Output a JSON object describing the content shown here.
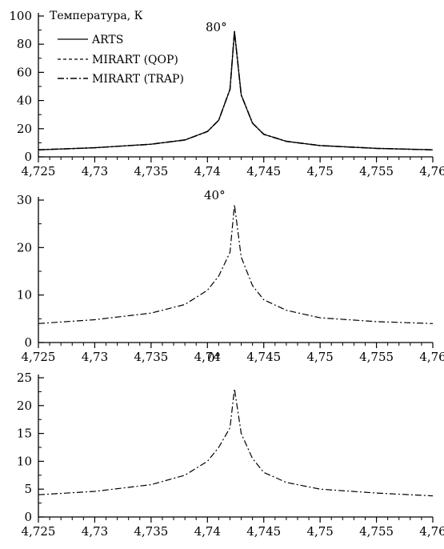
{
  "chart_data": [
    {
      "type": "line",
      "title": "",
      "ylabel": "Температура, К",
      "annotation": "80°",
      "xlim": [
        4.725,
        4.76
      ],
      "ylim": [
        0,
        100
      ],
      "xticks": [
        "4,725",
        "4,73",
        "4,735",
        "4,74",
        "4,745",
        "4,75",
        "4,755",
        "4,76"
      ],
      "yticks": [
        "0",
        "20",
        "40",
        "60",
        "80",
        "100"
      ],
      "legend": {
        "placement": "top-left",
        "entries": [
          {
            "label": "ARTS",
            "style": "solid"
          },
          {
            "label": "MIRART (QOP)",
            "style": "dashed"
          },
          {
            "label": "MIRART (TRAP)",
            "style": "dashdot"
          }
        ]
      },
      "series": [
        {
          "name": "ARTS",
          "x": [
            4.725,
            4.73,
            4.735,
            4.738,
            4.74,
            4.741,
            4.742,
            4.7424,
            4.743,
            4.744,
            4.745,
            4.747,
            4.75,
            4.755,
            4.76
          ],
          "y": [
            5,
            6.5,
            9,
            12,
            18,
            26,
            48,
            89,
            44,
            24,
            16,
            11,
            8,
            6,
            5
          ]
        },
        {
          "name": "MIRART (QOP)",
          "x": [
            4.725,
            4.73,
            4.735,
            4.738,
            4.74,
            4.741,
            4.742,
            4.7424,
            4.743,
            4.744,
            4.745,
            4.747,
            4.75,
            4.755,
            4.76
          ],
          "y": [
            5,
            6.5,
            9,
            12,
            18,
            26,
            48,
            89,
            44,
            24,
            16,
            11,
            8,
            6,
            5
          ]
        },
        {
          "name": "MIRART (TRAP)",
          "x": [
            4.725,
            4.73,
            4.735,
            4.738,
            4.74,
            4.741,
            4.742,
            4.7424,
            4.743,
            4.744,
            4.745,
            4.747,
            4.75,
            4.755,
            4.76
          ],
          "y": [
            5,
            6.5,
            9,
            12,
            18,
            26,
            48,
            89,
            44,
            24,
            16,
            11,
            8,
            6,
            5
          ]
        }
      ]
    },
    {
      "type": "line",
      "annotation": "40°",
      "xlim": [
        4.725,
        4.76
      ],
      "ylim": [
        0,
        30
      ],
      "xticks": [
        "4,725",
        "4,73",
        "4,735",
        "4,74",
        "4,745",
        "4,75",
        "4,755",
        "4,76"
      ],
      "yticks": [
        "0",
        "10",
        "20",
        "30"
      ],
      "series": [
        {
          "x": [
            4.725,
            4.73,
            4.735,
            4.738,
            4.74,
            4.741,
            4.742,
            4.7424,
            4.743,
            4.744,
            4.745,
            4.747,
            4.75,
            4.755,
            4.76
          ],
          "y": [
            4,
            4.8,
            6.2,
            8,
            11,
            14,
            19,
            29,
            18,
            12,
            9,
            6.8,
            5.2,
            4.4,
            4
          ]
        }
      ]
    },
    {
      "type": "line",
      "annotation": "0°",
      "xlim": [
        4.725,
        4.76
      ],
      "ylim": [
        0,
        25
      ],
      "xticks": [
        "4,725",
        "4,73",
        "4,735",
        "4,74",
        "4,745",
        "4,75",
        "4,755",
        "4,76"
      ],
      "yticks": [
        "0",
        "5",
        "10",
        "15",
        "20",
        "25"
      ],
      "series": [
        {
          "x": [
            4.725,
            4.73,
            4.735,
            4.738,
            4.74,
            4.741,
            4.742,
            4.7424,
            4.743,
            4.744,
            4.745,
            4.747,
            4.75,
            4.755,
            4.76
          ],
          "y": [
            4,
            4.6,
            5.8,
            7.5,
            10,
            12.5,
            16,
            23,
            15,
            10.5,
            8,
            6.2,
            5,
            4.3,
            3.8
          ]
        }
      ]
    }
  ]
}
